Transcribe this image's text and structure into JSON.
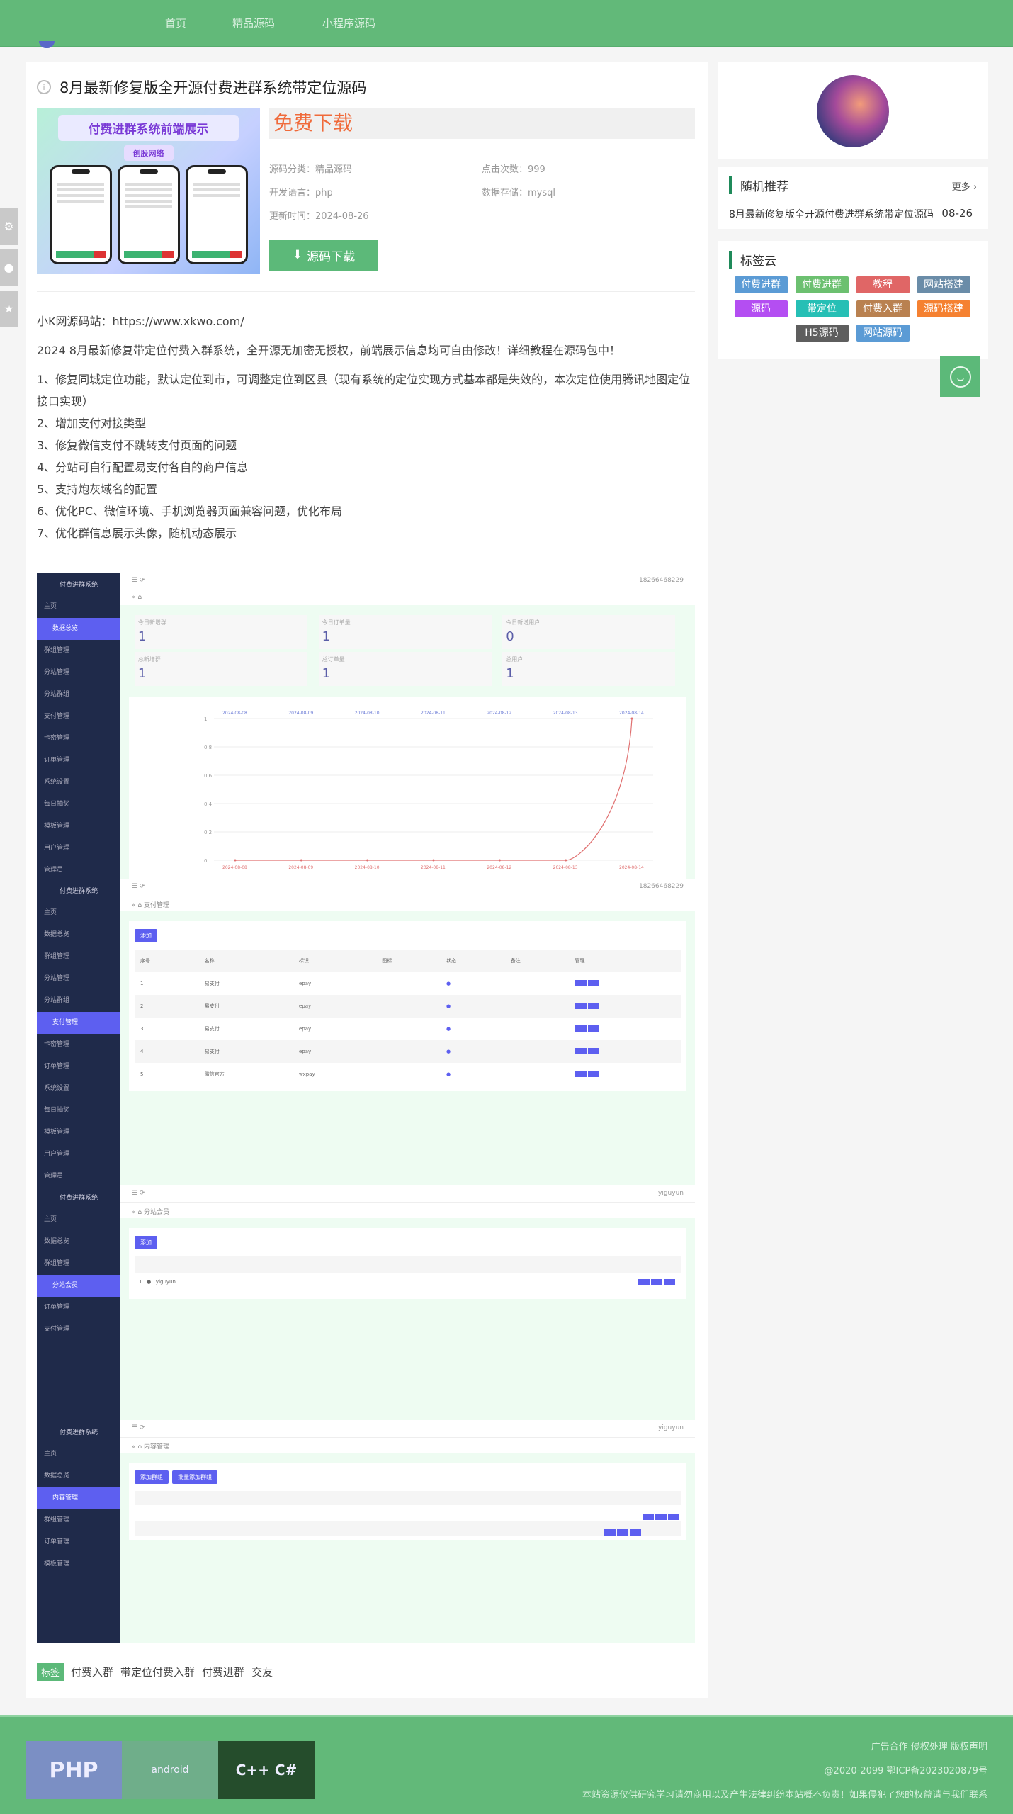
{
  "nav": {
    "items": [
      "首页",
      "精品源码",
      "小程序源码"
    ]
  },
  "article": {
    "title": "8月最新修复版全开源付费进群系统带定位源码",
    "thumbnail": {
      "heading": "付费进群系统前端展示",
      "sub": "创股网络"
    },
    "free_label": "免费下载",
    "meta": {
      "category_label": "源码分类：",
      "category": "精品源码",
      "clicks_label": "点击次数：",
      "clicks": "999",
      "lang_label": "开发语言：",
      "lang": "php",
      "db_label": "数据存储：",
      "db": "mysql",
      "updated_label": "更新时间：",
      "updated": "2024-08-26"
    },
    "download_button": "源码下载",
    "site_line": "小K网源码站：https://www.xkwo.com/",
    "intro": "2024 8月最新修复带定位付费入群系统，全开源无加密无授权，前端展示信息均可自由修改！详细教程在源码包中！",
    "items": [
      "1、修复同城定位功能，默认定位到市，可调整定位到区县（现有系统的定位实现方式基本都是失效的，本次定位使用腾讯地图定位接口实现）",
      "2、增加支付对接类型",
      "3、修复微信支付不跳转支付页面的问题",
      "4、分站可自行配置易支付各自的商户信息",
      "5、支持炮灰域名的配置",
      "6、优化PC、微信环境、手机浏览器页面兼容问题，优化布局",
      "7、优化群信息展示头像，随机动态展示"
    ],
    "screenshots": {
      "system_name": "付费进群系统",
      "phone": "18266468229",
      "user": "yiguyun",
      "menu": [
        "主页",
        "数据总览",
        "群组管理",
        "分站管理",
        "分站群组",
        "支付管理",
        "卡密管理",
        "订单管理",
        "系统设置",
        "每日抽奖",
        "模板管理",
        "用户管理",
        "管理员"
      ],
      "stats": [
        {
          "label": "今日新增群",
          "value": "1"
        },
        {
          "label": "今日订单量",
          "value": "1"
        },
        {
          "label": "今日新增用户",
          "value": "0"
        },
        {
          "label": "总新增群",
          "value": "1"
        },
        {
          "label": "总订单量",
          "value": "1"
        },
        {
          "label": "总用户",
          "value": "1"
        }
      ],
      "chart_dates": [
        "2024-08-08",
        "2024-08-09",
        "2024-08-10",
        "2024-08-11",
        "2024-08-12",
        "2024-08-13",
        "2024-08-14"
      ],
      "chart_values": [
        0,
        0,
        0,
        0,
        0,
        0,
        1
      ],
      "chart_yticks": [
        "0",
        "0.2",
        "0.4",
        "0.6",
        "0.8",
        "1"
      ],
      "pay_tab": "支付管理",
      "add_button": "添加",
      "pay_headers": [
        "序号",
        "名称",
        "标识",
        "图标",
        "状态",
        "备注",
        "管理"
      ],
      "pay_rows": [
        [
          "1",
          "易支付",
          "epay"
        ],
        [
          "2",
          "易支付",
          "epay"
        ],
        [
          "3",
          "易支付",
          "epay"
        ],
        [
          "4",
          "易支付",
          "epay"
        ],
        [
          "5",
          "微信官方",
          "wxpay"
        ]
      ],
      "member_tab": "分站会员",
      "content_tab": "内容管理",
      "add_content": "添加群组",
      "batch_add": "批量添加群组"
    },
    "tags_label": "标签",
    "tags": [
      "付费入群",
      "带定位付费入群",
      "付费进群",
      "交友"
    ]
  },
  "sidebar": {
    "random": {
      "title": "随机推荐",
      "more": "更多",
      "item": "8月最新修复版全开源付费进群系统带定位源码",
      "date": "08-26"
    },
    "tagcloud": {
      "title": "标签云",
      "tags": [
        {
          "label": "付费进群",
          "color": "#5b9bd5"
        },
        {
          "label": "付费进群",
          "color": "#6cc070"
        },
        {
          "label": "教程",
          "color": "#e06666"
        },
        {
          "label": "网站搭建",
          "color": "#6a8ca8"
        },
        {
          "label": "源码",
          "color": "#b44ef2"
        },
        {
          "label": "带定位",
          "color": "#26bfb5"
        },
        {
          "label": "付费入群",
          "color": "#b98150"
        },
        {
          "label": "源码搭建",
          "color": "#f58131"
        },
        {
          "label": "H5源码",
          "color": "#5e5e5e"
        },
        {
          "label": "网站源码",
          "color": "#5b9bd5"
        }
      ]
    }
  },
  "footer": {
    "links": [
      "广告合作",
      "侵权处理",
      "版权声明"
    ],
    "icp": "@2020-2099 鄂ICP备2023020879号",
    "disclaimer": "本站资源仅供研究学习请勿商用以及产生法律纠纷本站概不负责！如果侵犯了您的权益请与我们联系",
    "logos": [
      "PHP",
      "android",
      "C++ C#"
    ]
  },
  "colors": {
    "brand": "#62b979",
    "accent": "#f06a3a",
    "admin_sidebar": "#1f2a4a",
    "admin_accent": "#5d5ff0"
  }
}
